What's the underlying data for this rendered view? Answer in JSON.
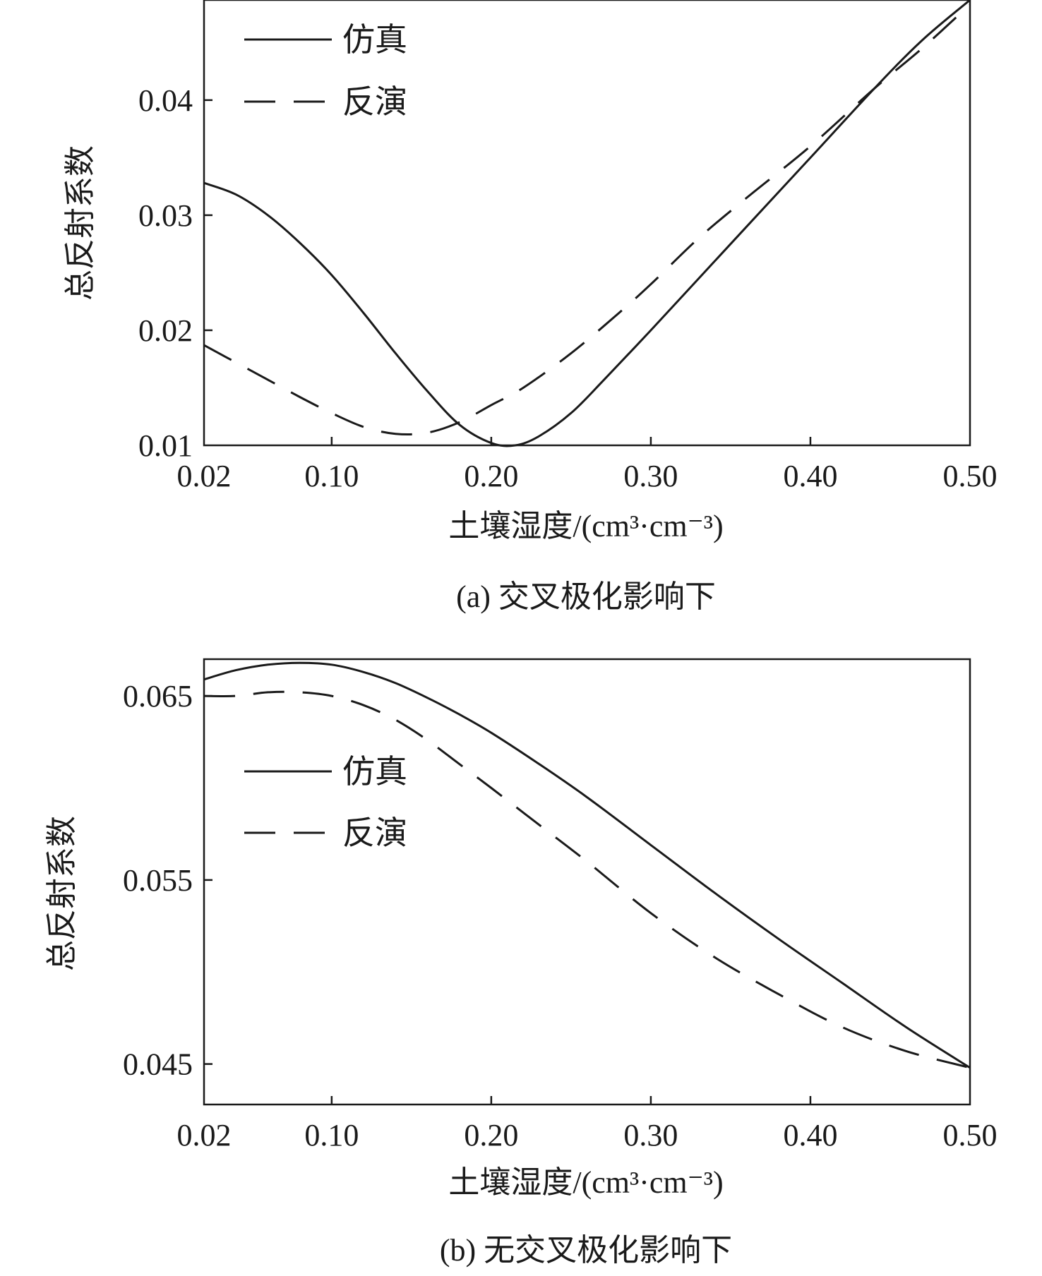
{
  "chart_data": [
    {
      "type": "line",
      "panel": "a",
      "caption": "(a) 交叉极化影响下",
      "xlabel": "土壤湿度/(cm³·cm⁻³)",
      "ylabel": "总反射系数",
      "xlim": [
        0.02,
        0.5
      ],
      "ylim": [
        0.01,
        0.0487
      ],
      "xticks": [
        "0.02",
        "0.10",
        "0.20",
        "0.30",
        "0.40",
        "0.50"
      ],
      "yticks": [
        "0.01",
        "0.02",
        "0.03",
        "0.04"
      ],
      "legend": {
        "position": "top-left",
        "entries": [
          "仿真",
          "反演"
        ]
      },
      "series": [
        {
          "name": "仿真",
          "style": "solid",
          "x": [
            0.02,
            0.04,
            0.06,
            0.08,
            0.1,
            0.12,
            0.14,
            0.16,
            0.18,
            0.2,
            0.215,
            0.23,
            0.25,
            0.27,
            0.3,
            0.33,
            0.36,
            0.4,
            0.44,
            0.47,
            0.5
          ],
          "y": [
            0.0328,
            0.0318,
            0.03,
            0.0276,
            0.0248,
            0.0215,
            0.018,
            0.0147,
            0.0118,
            0.0102,
            0.01,
            0.0108,
            0.0128,
            0.0156,
            0.02,
            0.0245,
            0.029,
            0.035,
            0.041,
            0.0452,
            0.0487
          ]
        },
        {
          "name": "反演",
          "style": "dashed",
          "x": [
            0.02,
            0.04,
            0.06,
            0.08,
            0.1,
            0.12,
            0.14,
            0.16,
            0.18,
            0.2,
            0.22,
            0.25,
            0.28,
            0.3,
            0.33,
            0.36,
            0.4,
            0.44,
            0.47,
            0.5
          ],
          "y": [
            0.0187,
            0.0172,
            0.0157,
            0.0142,
            0.0128,
            0.0116,
            0.011,
            0.0111,
            0.012,
            0.0135,
            0.015,
            0.018,
            0.0215,
            0.024,
            0.028,
            0.0315,
            0.036,
            0.041,
            0.0445,
            0.0483
          ]
        }
      ]
    },
    {
      "type": "line",
      "panel": "b",
      "caption": "(b) 无交叉极化影响下",
      "xlabel": "土壤湿度/(cm³·cm⁻³)",
      "ylabel": "总反射系数",
      "xlim": [
        0.02,
        0.5
      ],
      "ylim": [
        0.0428,
        0.067
      ],
      "xticks": [
        "0.02",
        "0.10",
        "0.20",
        "0.30",
        "0.40",
        "0.50"
      ],
      "yticks": [
        "0.045",
        "0.055",
        "0.065"
      ],
      "legend": {
        "position": "upper-left",
        "entries": [
          "仿真",
          "反演"
        ]
      },
      "series": [
        {
          "name": "仿真",
          "style": "solid",
          "x": [
            0.02,
            0.04,
            0.06,
            0.08,
            0.1,
            0.12,
            0.14,
            0.16,
            0.18,
            0.2,
            0.23,
            0.26,
            0.3,
            0.34,
            0.38,
            0.42,
            0.46,
            0.5
          ],
          "y": [
            0.0659,
            0.0664,
            0.0667,
            0.0668,
            0.0667,
            0.0663,
            0.0657,
            0.0649,
            0.064,
            0.063,
            0.0613,
            0.0595,
            0.0569,
            0.0543,
            0.0518,
            0.0494,
            0.047,
            0.0448
          ]
        },
        {
          "name": "反演",
          "style": "dashed",
          "x": [
            0.02,
            0.04,
            0.06,
            0.08,
            0.1,
            0.12,
            0.14,
            0.16,
            0.18,
            0.2,
            0.23,
            0.26,
            0.3,
            0.34,
            0.38,
            0.42,
            0.46,
            0.5
          ],
          "y": [
            0.065,
            0.065,
            0.0652,
            0.0652,
            0.065,
            0.0645,
            0.0637,
            0.0626,
            0.0613,
            0.06,
            0.058,
            0.056,
            0.0532,
            0.0508,
            0.0488,
            0.047,
            0.0457,
            0.0448
          ]
        }
      ]
    }
  ]
}
